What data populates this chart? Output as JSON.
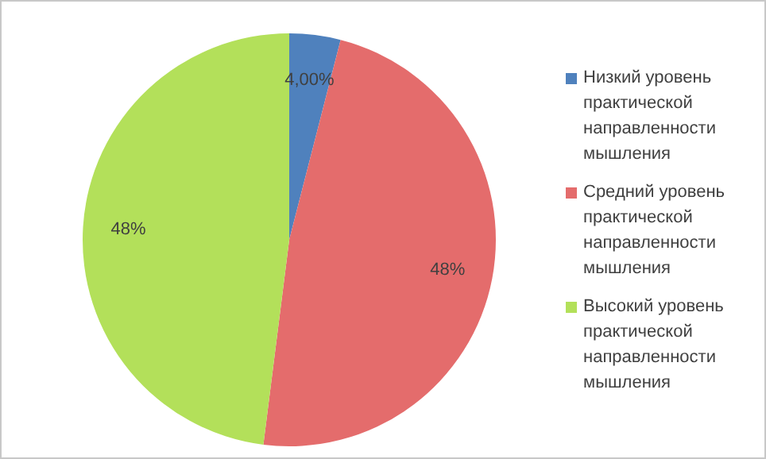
{
  "chart_data": {
    "type": "pie",
    "categories": [
      "Низкий уровень практической направленности мышления",
      "Средний уровень практической направленности мышления",
      "Высокий уровень практической направленности мышления"
    ],
    "values": [
      4,
      48,
      48
    ],
    "colors": [
      "#4f81bd",
      "#e46c6c",
      "#b3e05a"
    ],
    "value_labels": [
      "4,00%",
      "48%",
      "48%"
    ],
    "legend": "right"
  }
}
